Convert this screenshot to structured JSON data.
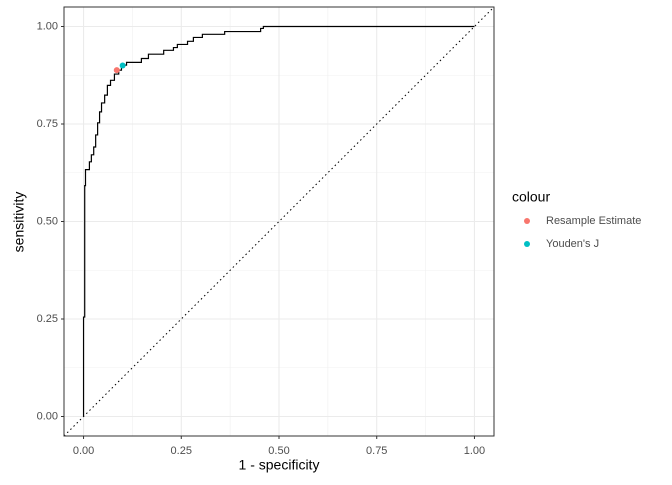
{
  "chart_data": {
    "type": "line",
    "x_label": "1 - specificity",
    "y_label": "sensitivity",
    "xlim": [
      -0.05,
      1.05
    ],
    "ylim": [
      -0.05,
      1.05
    ],
    "xticks": [
      {
        "value": 0,
        "label": "0.00"
      },
      {
        "value": 0.25,
        "label": "0.25"
      },
      {
        "value": 0.5,
        "label": "0.50"
      },
      {
        "value": 0.75,
        "label": "0.75"
      },
      {
        "value": 1,
        "label": "1.00"
      }
    ],
    "yticks": [
      {
        "value": 0,
        "label": "0.00"
      },
      {
        "value": 0.25,
        "label": "0.25"
      },
      {
        "value": 0.5,
        "label": "0.50"
      },
      {
        "value": 0.75,
        "label": "0.75"
      },
      {
        "value": 1,
        "label": "1.00"
      }
    ],
    "grid": true,
    "minor_grid": true,
    "reference_diagonal": true,
    "curve": {
      "color": "#000000",
      "x": [
        0,
        0,
        0.003,
        0.003,
        0.005,
        0.005,
        0.015,
        0.015,
        0.02,
        0.02,
        0.026,
        0.026,
        0.031,
        0.031,
        0.036,
        0.036,
        0.041,
        0.041,
        0.046,
        0.046,
        0.054,
        0.054,
        0.061,
        0.061,
        0.069,
        0.069,
        0.079,
        0.079,
        0.09,
        0.09,
        0.097,
        0.097,
        0.11,
        0.11,
        0.148,
        0.148,
        0.166,
        0.166,
        0.205,
        0.205,
        0.23,
        0.23,
        0.24,
        0.24,
        0.266,
        0.266,
        0.281,
        0.281,
        0.304,
        0.304,
        0.361,
        0.361,
        0.453,
        0.453,
        0.46,
        0.46,
        1
      ],
      "y": [
        0,
        0.255,
        0.255,
        0.592,
        0.592,
        0.633,
        0.633,
        0.653,
        0.653,
        0.671,
        0.671,
        0.691,
        0.691,
        0.722,
        0.722,
        0.753,
        0.753,
        0.781,
        0.781,
        0.804,
        0.804,
        0.824,
        0.824,
        0.849,
        0.849,
        0.862,
        0.862,
        0.878,
        0.878,
        0.888,
        0.888,
        0.901,
        0.901,
        0.908,
        0.908,
        0.918,
        0.918,
        0.929,
        0.929,
        0.939,
        0.939,
        0.946,
        0.946,
        0.954,
        0.954,
        0.962,
        0.962,
        0.972,
        0.972,
        0.98,
        0.98,
        0.987,
        0.987,
        0.995,
        0.995,
        1,
        1
      ]
    },
    "legend_title": "colour",
    "legend_position": "right",
    "series": [
      {
        "name": "Resample Estimate",
        "color": "#F8766D",
        "x": [
          0.085
        ],
        "values": [
          0.888
        ]
      },
      {
        "name": "Youden's J",
        "color": "#00BFC4",
        "x": [
          0.1
        ],
        "values": [
          0.9
        ]
      }
    ]
  }
}
